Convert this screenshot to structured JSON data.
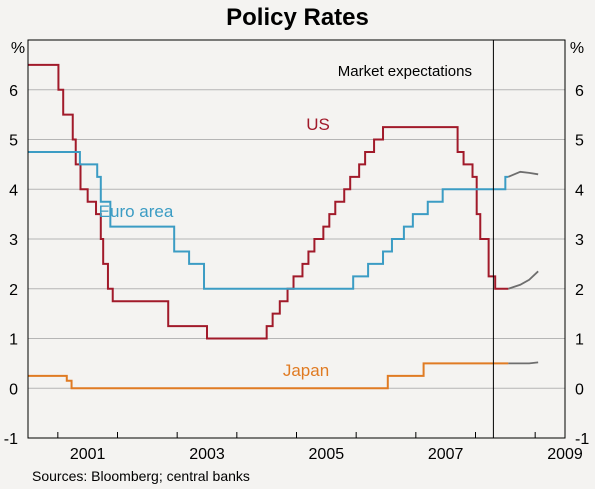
{
  "chart_data": {
    "type": "line",
    "title": "Policy Rates",
    "ylabel_left": "%",
    "ylabel_right": "%",
    "ylim": [
      -1,
      7
    ],
    "yticks": [
      "-1",
      "0",
      "1",
      "2",
      "3",
      "4",
      "5",
      "6"
    ],
    "xlim": [
      2000.5,
      2009.5
    ],
    "xticks": [
      "2001",
      "2003",
      "2005",
      "2007",
      "2009"
    ],
    "grid": true,
    "annotation": "Market expectations",
    "expectations_start": 2008.3,
    "source": "Sources: Bloomberg; central banks",
    "colors": {
      "us": "#a11a2a",
      "euro": "#3b9cc4",
      "japan": "#e07b23",
      "expectations": "#6e6e6e",
      "grid": "#b5b5b5"
    },
    "series": [
      {
        "name": "US",
        "color_key": "us",
        "step": true,
        "points": [
          [
            2000.5,
            6.5
          ],
          [
            2001.01,
            6.0
          ],
          [
            2001.09,
            5.5
          ],
          [
            2001.25,
            5.0
          ],
          [
            2001.3,
            4.5
          ],
          [
            2001.38,
            4.0
          ],
          [
            2001.5,
            3.75
          ],
          [
            2001.64,
            3.5
          ],
          [
            2001.72,
            3.0
          ],
          [
            2001.76,
            2.5
          ],
          [
            2001.84,
            2.0
          ],
          [
            2001.92,
            1.75
          ],
          [
            2002.85,
            1.25
          ],
          [
            2003.5,
            1.0
          ],
          [
            2004.5,
            1.25
          ],
          [
            2004.6,
            1.5
          ],
          [
            2004.72,
            1.75
          ],
          [
            2004.85,
            2.0
          ],
          [
            2004.95,
            2.25
          ],
          [
            2005.1,
            2.5
          ],
          [
            2005.2,
            2.75
          ],
          [
            2005.3,
            3.0
          ],
          [
            2005.45,
            3.25
          ],
          [
            2005.55,
            3.5
          ],
          [
            2005.65,
            3.75
          ],
          [
            2005.8,
            4.0
          ],
          [
            2005.9,
            4.25
          ],
          [
            2006.05,
            4.5
          ],
          [
            2006.15,
            4.75
          ],
          [
            2006.3,
            5.0
          ],
          [
            2006.45,
            5.25
          ],
          [
            2007.7,
            4.75
          ],
          [
            2007.8,
            4.5
          ],
          [
            2007.95,
            4.25
          ],
          [
            2008.02,
            3.5
          ],
          [
            2008.08,
            3.0
          ],
          [
            2008.22,
            2.25
          ],
          [
            2008.33,
            2.0
          ],
          [
            2008.55,
            2.0
          ]
        ]
      },
      {
        "name": "Euro area",
        "color_key": "euro",
        "step": true,
        "points": [
          [
            2000.5,
            4.75
          ],
          [
            2001.37,
            4.5
          ],
          [
            2001.66,
            4.25
          ],
          [
            2001.72,
            3.75
          ],
          [
            2001.88,
            3.25
          ],
          [
            2002.95,
            2.75
          ],
          [
            2003.2,
            2.5
          ],
          [
            2003.45,
            2.0
          ],
          [
            2005.95,
            2.25
          ],
          [
            2006.2,
            2.5
          ],
          [
            2006.45,
            2.75
          ],
          [
            2006.6,
            3.0
          ],
          [
            2006.8,
            3.25
          ],
          [
            2006.95,
            3.5
          ],
          [
            2007.2,
            3.75
          ],
          [
            2007.45,
            4.0
          ],
          [
            2008.5,
            4.25
          ],
          [
            2008.55,
            4.25
          ]
        ]
      },
      {
        "name": "Japan",
        "color_key": "japan",
        "step": true,
        "points": [
          [
            2000.5,
            0.25
          ],
          [
            2001.15,
            0.15
          ],
          [
            2001.23,
            0.0
          ],
          [
            2006.53,
            0.25
          ],
          [
            2007.13,
            0.5
          ],
          [
            2008.55,
            0.5
          ]
        ]
      },
      {
        "name": "",
        "color_key": "expectations",
        "step": false,
        "points": [
          [
            2008.55,
            4.25
          ],
          [
            2008.75,
            4.35
          ],
          [
            2008.9,
            4.33
          ],
          [
            2009.05,
            4.3
          ]
        ]
      },
      {
        "name": "",
        "color_key": "expectations",
        "step": false,
        "points": [
          [
            2008.55,
            2.0
          ],
          [
            2008.75,
            2.08
          ],
          [
            2008.9,
            2.18
          ],
          [
            2009.05,
            2.35
          ]
        ]
      },
      {
        "name": "",
        "color_key": "expectations",
        "step": false,
        "points": [
          [
            2008.55,
            0.5
          ],
          [
            2008.75,
            0.5
          ],
          [
            2008.9,
            0.5
          ],
          [
            2009.05,
            0.52
          ]
        ]
      }
    ]
  }
}
